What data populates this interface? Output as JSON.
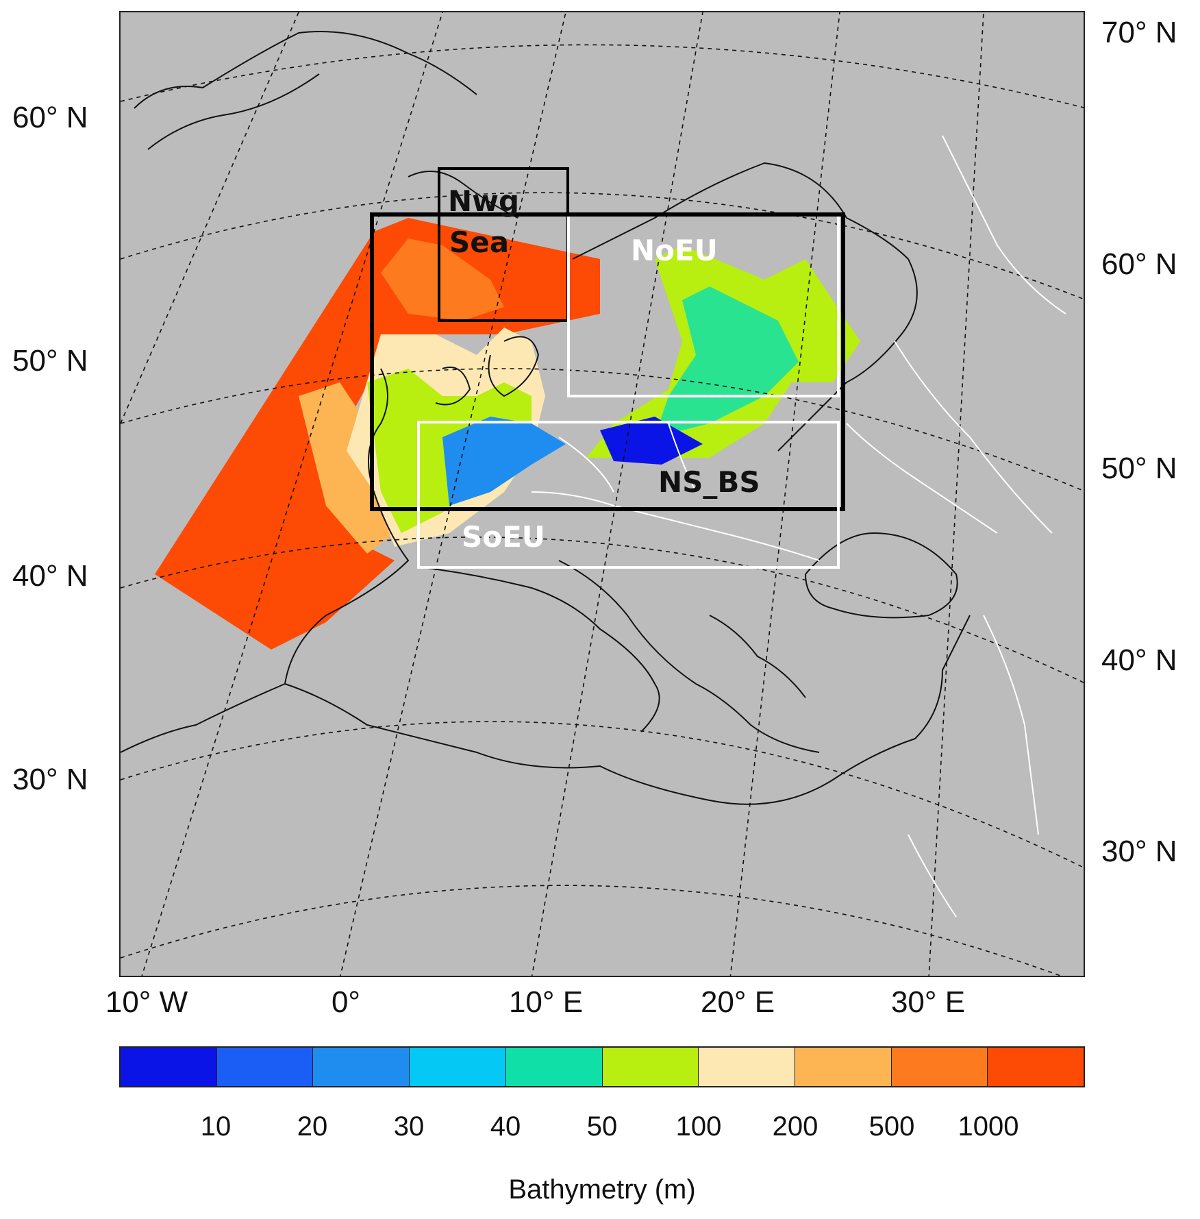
{
  "map": {
    "lon_labels": [
      "10° W",
      "0°",
      "10° E",
      "20° E",
      "30° E"
    ],
    "lat_labels_left": [
      "60° N",
      "50° N",
      "40° N",
      "30° N"
    ],
    "lat_labels_right": [
      "70° N",
      "60° N",
      "50° N",
      "40° N",
      "30° N"
    ],
    "regions": [
      {
        "id": "nwg-sea",
        "label_lines": [
          "Nwg",
          "Sea"
        ],
        "box_color": "#000000"
      },
      {
        "id": "noeu",
        "label_lines": [
          "NoEU"
        ],
        "box_color": "#ffffff"
      },
      {
        "id": "ns-bs",
        "label_lines": [
          "NS_BS"
        ],
        "box_color": "#000000"
      },
      {
        "id": "soeu",
        "label_lines": [
          "SoEU"
        ],
        "box_color": "#ffffff"
      }
    ],
    "colors": {
      "land_sea_background": "#bcbcbc",
      "coastline": "#111111",
      "rivers": "#ffffff"
    }
  },
  "colorbar": {
    "title": "Bathymetry (m)",
    "ticks": [
      "10",
      "20",
      "30",
      "40",
      "50",
      "100",
      "200",
      "500",
      "1000"
    ],
    "colors": [
      "#0a14e6",
      "#1a5ef5",
      "#1f8cf0",
      "#05c8f5",
      "#10e0a8",
      "#b8ee10",
      "#fde8b4",
      "#fdb452",
      "#fd7a1e",
      "#fd4a05"
    ]
  }
}
